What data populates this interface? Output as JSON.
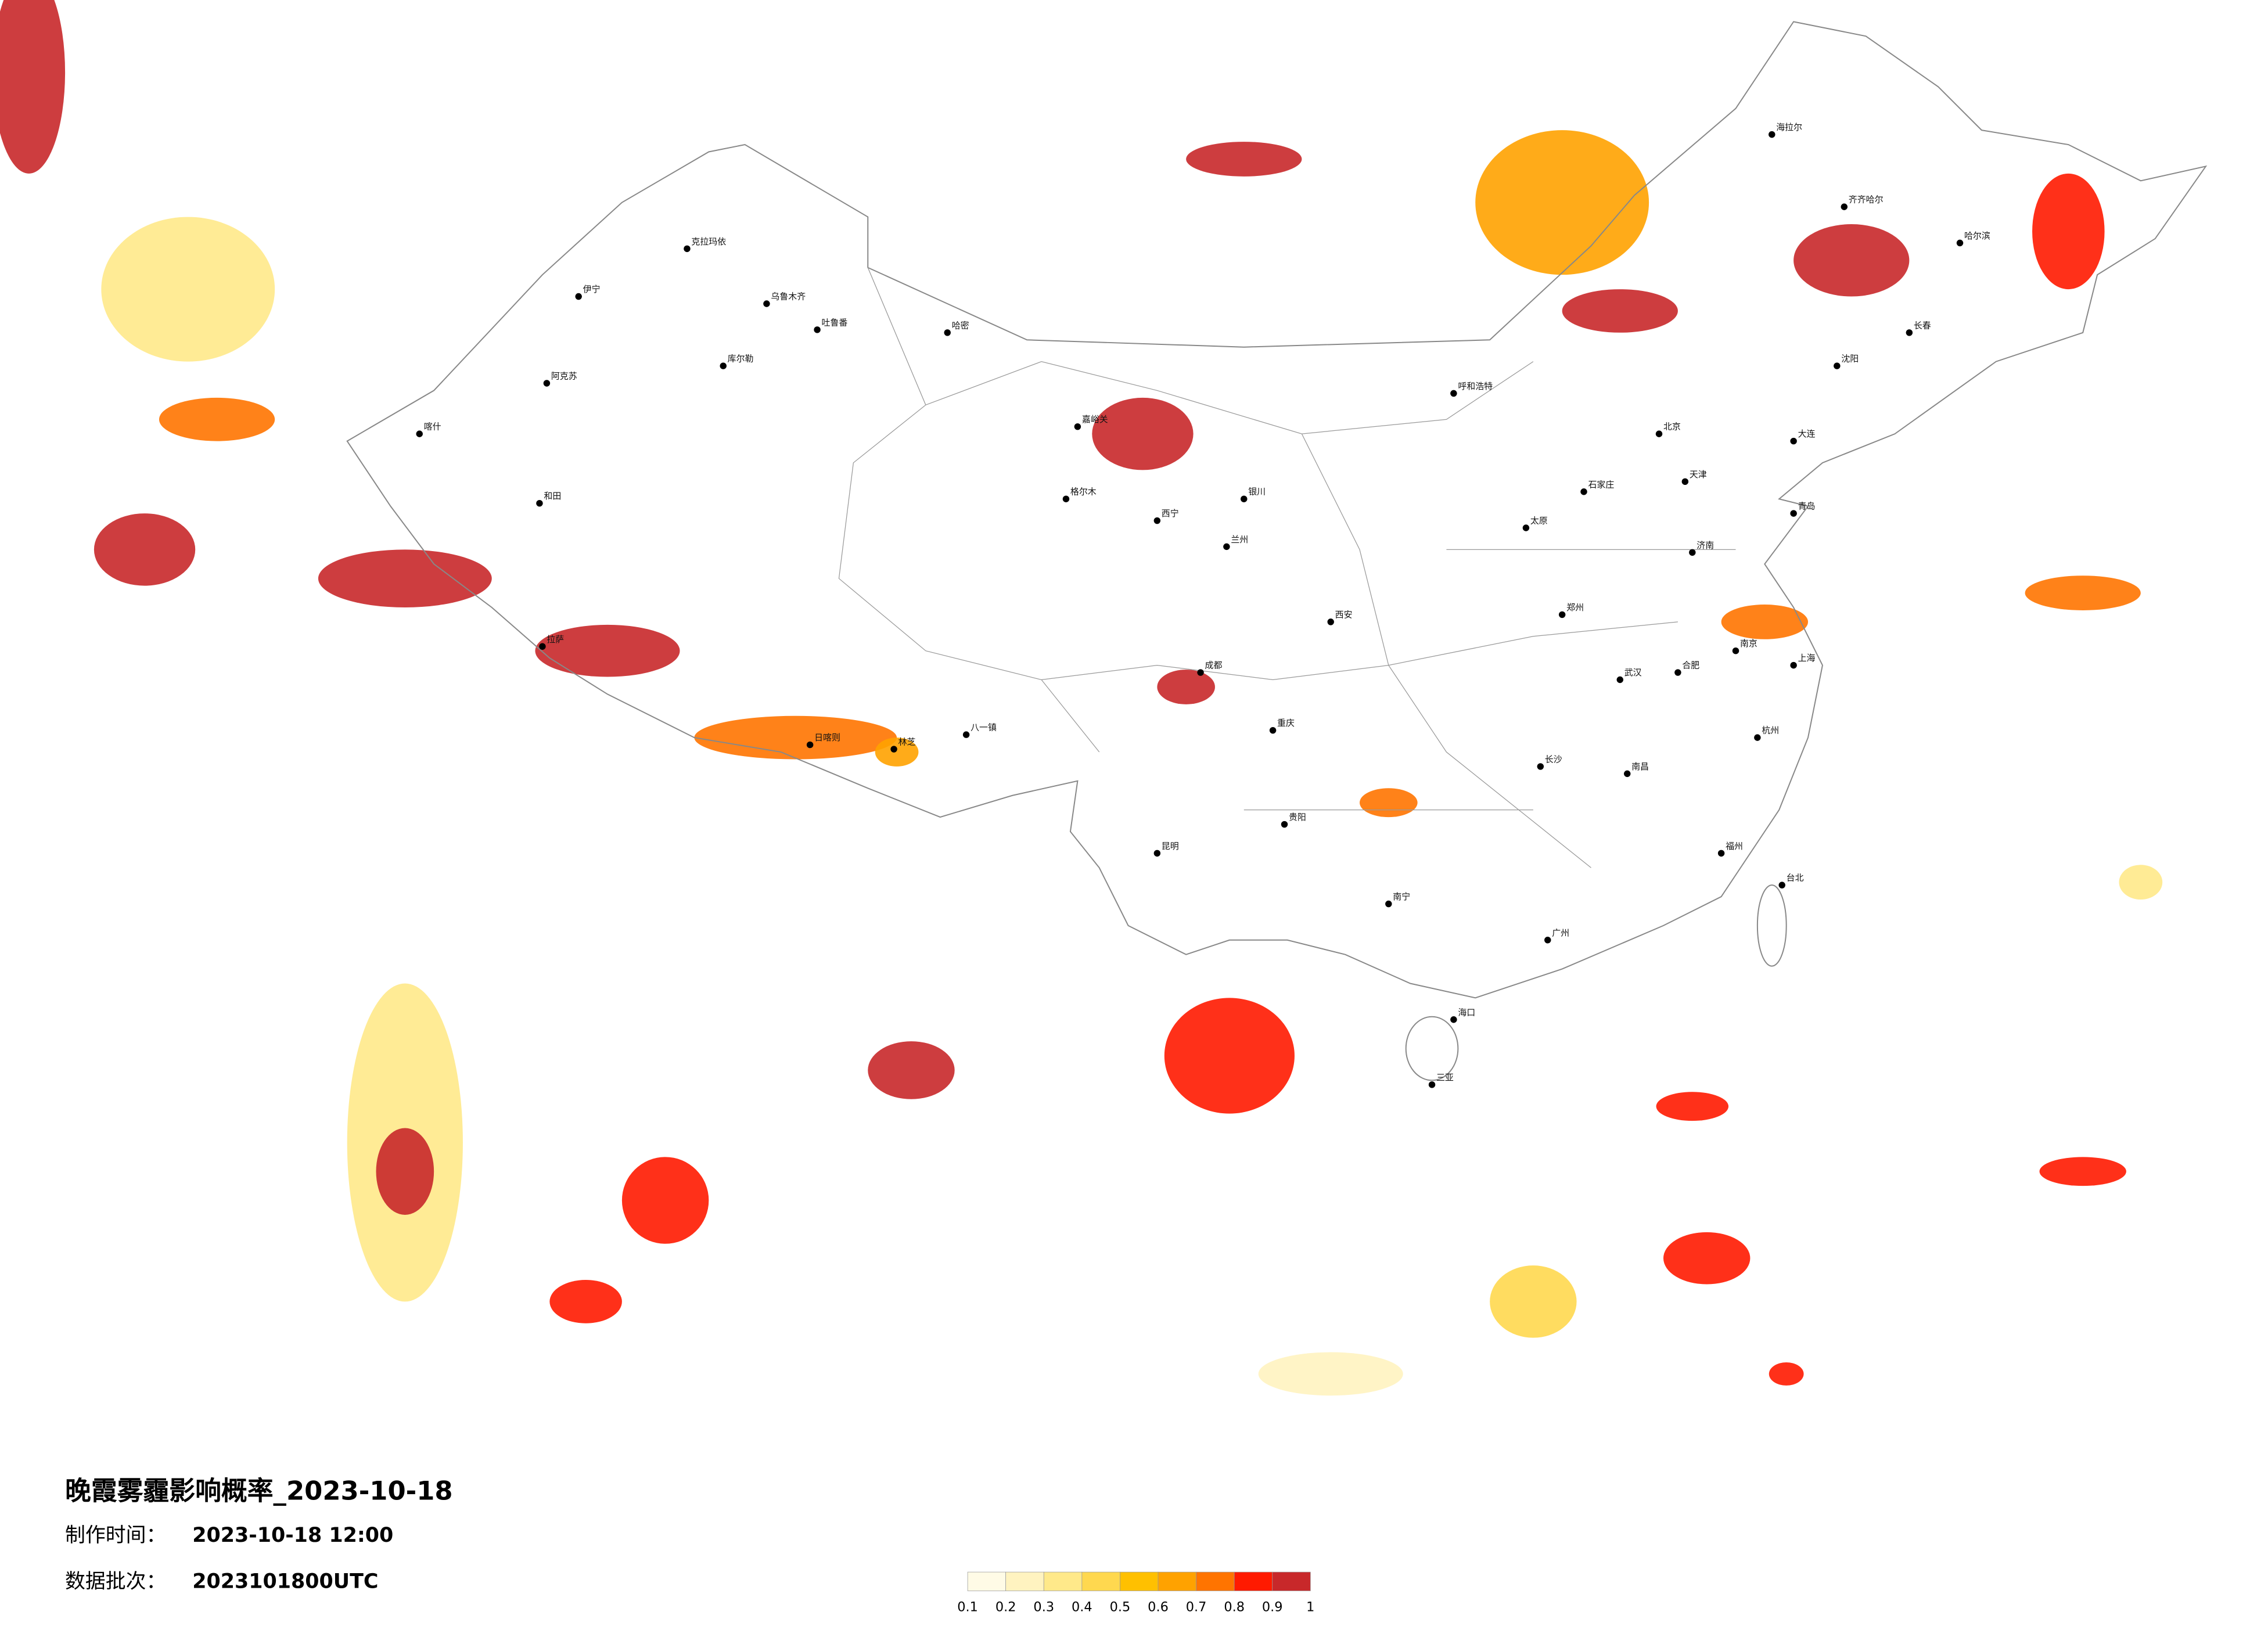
{
  "header": {
    "title": "晚霞雾霾影响概率_2023-10-18",
    "made_label": "制作时间：",
    "made_value": "2023-10-18 12:00",
    "batch_label": "数据批次：",
    "batch_value": "2023101800UTC"
  },
  "legend": {
    "ticks": [
      0.1,
      0.2,
      0.3,
      0.4,
      0.5,
      0.6,
      0.7,
      0.8,
      0.9,
      1
    ],
    "colors": [
      "#fffbe6",
      "#fff3c0",
      "#ffe98a",
      "#ffd84f",
      "#ffc000",
      "#ffa200",
      "#ff7400",
      "#ff1a00",
      "#c8282a"
    ]
  },
  "cities": [
    "克拉玛依",
    "伊宁",
    "乌鲁木齐",
    "吐鲁番",
    "哈密",
    "库尔勒",
    "阿克苏",
    "喀什",
    "和田",
    "嘉峪关",
    "格尔木",
    "拉萨",
    "日喀则",
    "八一镇",
    "林芝",
    "呼和浩特",
    "银川",
    "兰州",
    "西宁",
    "西安",
    "成都",
    "重庆",
    "昆明",
    "贵阳",
    "南宁",
    "海口",
    "北京",
    "天津",
    "石家庄",
    "太原",
    "济南",
    "郑州",
    "武汉",
    "长沙",
    "南昌",
    "合肥",
    "南京",
    "上海",
    "杭州",
    "福州",
    "广州",
    "台北",
    "沈阳",
    "长春",
    "哈尔滨",
    "海拉尔",
    "齐齐哈尔",
    "大连",
    "青岛",
    "三亚"
  ]
}
